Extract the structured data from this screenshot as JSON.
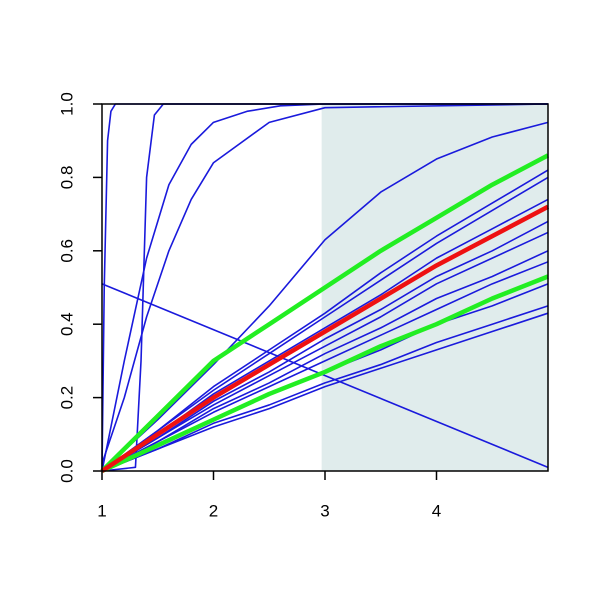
{
  "chart_data": {
    "type": "line",
    "xlim": [
      1,
      5
    ],
    "ylim": [
      0,
      1
    ],
    "xticks": [
      1,
      2,
      3,
      4
    ],
    "yticks": [
      {
        "value": 0,
        "label": "0.0"
      },
      0.2,
      0.4,
      0.6,
      0.8,
      {
        "value": 1,
        "label": "1.0"
      }
    ],
    "shaded_region": {
      "x": [
        2.97,
        5
      ],
      "color": "#e0ecec"
    },
    "x": [
      1,
      1.5,
      2,
      2.5,
      3,
      3.5,
      4,
      4.5,
      5
    ],
    "series": [
      {
        "color": "#1a1adc",
        "x": [
          1,
          1.02,
          1.05,
          1.08,
          1.12,
          5
        ],
        "values": [
          0,
          0.5,
          0.9,
          0.98,
          1,
          1
        ]
      },
      {
        "color": "#1a1adc",
        "x": [
          1,
          1.3,
          1.35,
          1.4,
          1.47,
          1.55,
          5
        ],
        "values": [
          0,
          0.01,
          0.3,
          0.8,
          0.97,
          1,
          1
        ]
      },
      {
        "color": "#1a1adc",
        "x": [
          1,
          1.2,
          1.4,
          1.6,
          1.8,
          2,
          2.3,
          2.6,
          3,
          5
        ],
        "values": [
          0,
          0.3,
          0.58,
          0.78,
          0.89,
          0.95,
          0.98,
          0.995,
          1,
          1
        ]
      },
      {
        "color": "#1a1adc",
        "x": [
          1,
          1.2,
          1.4,
          1.6,
          1.8,
          2,
          2.5,
          3,
          5
        ],
        "values": [
          0.02,
          0.2,
          0.42,
          0.6,
          0.74,
          0.84,
          0.95,
          0.99,
          1
        ]
      },
      {
        "color": "#1a1adc",
        "values": [
          0,
          0.14,
          0.29,
          0.45,
          0.63,
          0.76,
          0.85,
          0.91,
          0.95
        ]
      },
      {
        "color": "#1a1adc",
        "x": [
          1,
          5
        ],
        "values": [
          0.51,
          0.01
        ]
      },
      {
        "color": "#1a1adc",
        "values": [
          0,
          0.11,
          0.23,
          0.33,
          0.43,
          0.54,
          0.64,
          0.73,
          0.82
        ]
      },
      {
        "color": "#1a1adc",
        "values": [
          0,
          0.11,
          0.22,
          0.32,
          0.42,
          0.52,
          0.62,
          0.71,
          0.8
        ]
      },
      {
        "color": "#1a1adc",
        "values": [
          0,
          0.1,
          0.21,
          0.3,
          0.39,
          0.48,
          0.58,
          0.66,
          0.74
        ]
      },
      {
        "color": "#1a1adc",
        "values": [
          0,
          0.09,
          0.19,
          0.27,
          0.36,
          0.44,
          0.53,
          0.6,
          0.68
        ]
      },
      {
        "color": "#1a1adc",
        "values": [
          0,
          0.09,
          0.18,
          0.26,
          0.34,
          0.42,
          0.51,
          0.58,
          0.65
        ]
      },
      {
        "color": "#1a1adc",
        "values": [
          0,
          0.08,
          0.17,
          0.24,
          0.32,
          0.39,
          0.47,
          0.53,
          0.6
        ]
      },
      {
        "color": "#1a1adc",
        "values": [
          0,
          0.08,
          0.16,
          0.23,
          0.3,
          0.37,
          0.44,
          0.51,
          0.57
        ]
      },
      {
        "color": "#1a1adc",
        "values": [
          0,
          0.07,
          0.14,
          0.21,
          0.27,
          0.33,
          0.4,
          0.45,
          0.51
        ]
      },
      {
        "color": "#1a1adc",
        "values": [
          0,
          0.06,
          0.13,
          0.18,
          0.24,
          0.29,
          0.35,
          0.4,
          0.45
        ]
      },
      {
        "color": "#1a1adc",
        "values": [
          0,
          0.06,
          0.12,
          0.17,
          0.23,
          0.28,
          0.33,
          0.38,
          0.43
        ]
      },
      {
        "color": "#22ee22",
        "values": [
          0,
          0.15,
          0.3,
          0.4,
          0.5,
          0.6,
          0.69,
          0.78,
          0.86
        ]
      },
      {
        "color": "#22ee22",
        "values": [
          0,
          0.07,
          0.14,
          0.21,
          0.27,
          0.34,
          0.4,
          0.47,
          0.53
        ]
      },
      {
        "color": "#ee1111",
        "values": [
          0,
          0.1,
          0.2,
          0.29,
          0.38,
          0.47,
          0.56,
          0.64,
          0.72
        ]
      }
    ]
  }
}
